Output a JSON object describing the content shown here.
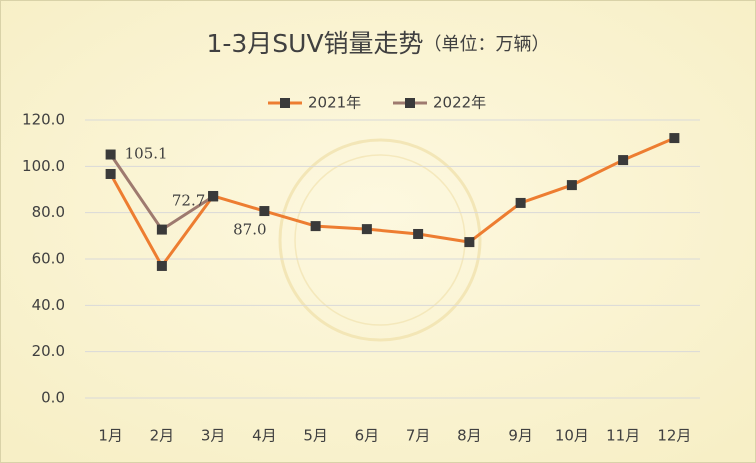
{
  "chart_data": {
    "type": "line",
    "title": "1-3月SUV销量走势",
    "subtitle": "（单位：万辆）",
    "categories": [
      "1月",
      "2月",
      "3月",
      "4月",
      "5月",
      "6月",
      "7月",
      "8月",
      "9月",
      "10月",
      "11月",
      "12月"
    ],
    "series": [
      {
        "name": "2021年",
        "color": "#ED7D31",
        "values": [
          96.7,
          57.0,
          87.2,
          80.7,
          74.2,
          72.9,
          70.8,
          67.3,
          84.2,
          91.9,
          102.7,
          112.2
        ]
      },
      {
        "name": "2022年",
        "color": "#9E7A6F",
        "values": [
          105.1,
          72.7,
          87.0,
          null,
          null,
          null,
          null,
          null,
          null,
          null,
          null,
          null
        ],
        "value_labels": [
          "105.1",
          "72.7",
          "87.0",
          null,
          null,
          null,
          null,
          null,
          null,
          null,
          null,
          null
        ]
      }
    ],
    "marker_color": "#3A3A3A",
    "ylim": [
      0,
      120
    ],
    "yticks": [
      {
        "value": 0,
        "label": "0.0"
      },
      {
        "value": 20,
        "label": "20.0"
      },
      {
        "value": 40,
        "label": "40.0"
      },
      {
        "value": 60,
        "label": "60.0"
      },
      {
        "value": 80,
        "label": "80.0"
      },
      {
        "value": 100,
        "label": "100.0"
      },
      {
        "value": 120,
        "label": "120.0"
      }
    ],
    "grid": true,
    "legend": "top"
  }
}
